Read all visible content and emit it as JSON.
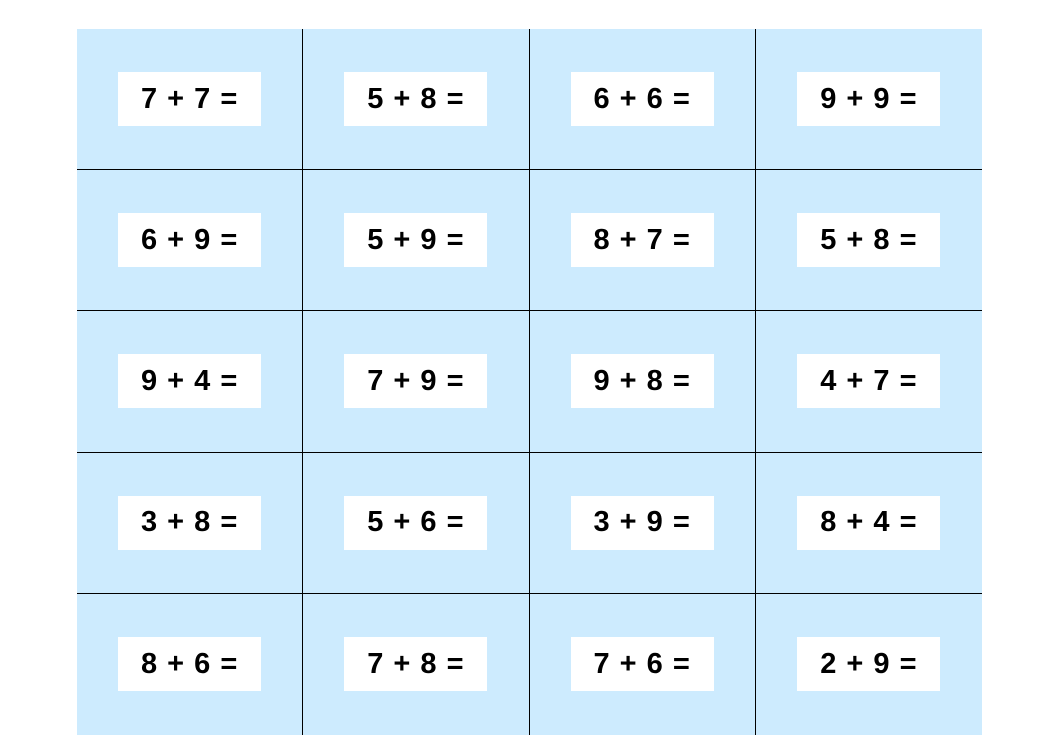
{
  "problems": [
    "7 + 7 =",
    "5 + 8 =",
    "6 + 6 =",
    "9 + 9 =",
    "6 + 9 =",
    "5 + 9 =",
    "8 + 7 =",
    "5 + 8 =",
    "9 + 4 =",
    "7 + 9 =",
    "9 + 8 =",
    "4 + 7 =",
    "3 + 8 =",
    "5 + 6 =",
    "3 + 9 =",
    "8 + 4 =",
    "8 + 6 =",
    "7 + 8 =",
    "7 + 6 =",
    "2 + 9 ="
  ],
  "colors": {
    "cell_background": "#cdebfe",
    "answer_box": "#ffffff"
  }
}
